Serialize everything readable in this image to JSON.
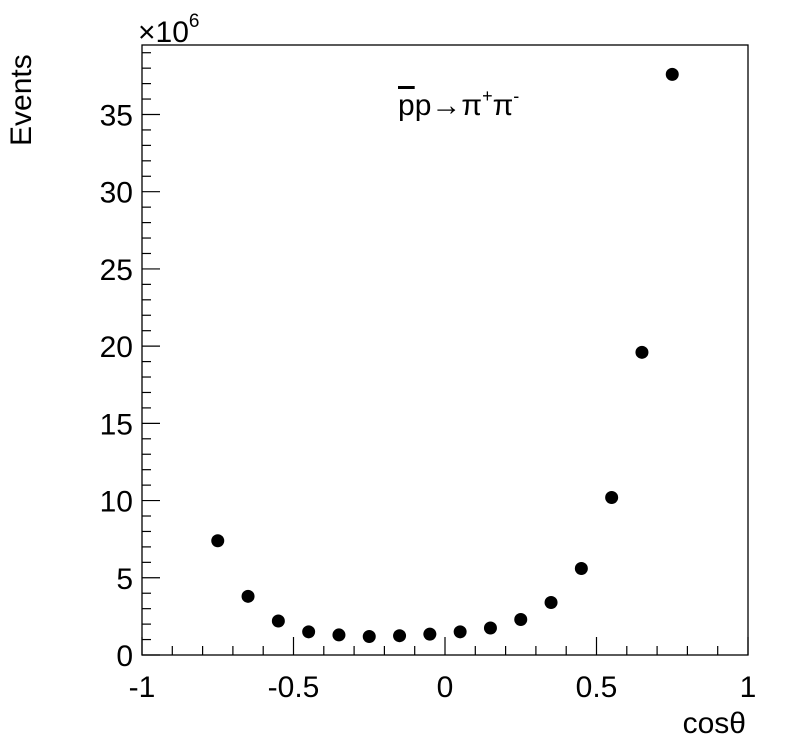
{
  "chart_data": {
    "type": "scatter",
    "title": "",
    "xlabel": "cosθ",
    "ylabel": "Events",
    "y_multiplier": "×10",
    "y_exponent": "6",
    "annotation": {
      "overline": "p",
      "main": "p→π",
      "sup1": "+",
      "mid": "π",
      "sup2": "-"
    },
    "xlim": [
      -1,
      1
    ],
    "ylim": [
      0,
      39.5
    ],
    "x_ticks": [
      {
        "value": -1,
        "label": "-1"
      },
      {
        "value": -0.5,
        "label": "-0.5"
      },
      {
        "value": 0,
        "label": "0"
      },
      {
        "value": 0.5,
        "label": "0.5"
      },
      {
        "value": 1,
        "label": "1"
      }
    ],
    "y_ticks": [
      {
        "value": 0,
        "label": "0"
      },
      {
        "value": 5,
        "label": "5"
      },
      {
        "value": 10,
        "label": "10"
      },
      {
        "value": 15,
        "label": "15"
      },
      {
        "value": 20,
        "label": "20"
      },
      {
        "value": 25,
        "label": "25"
      },
      {
        "value": 30,
        "label": "30"
      },
      {
        "value": 35,
        "label": "35"
      }
    ],
    "grid": false,
    "series": [
      {
        "x": [
          -0.75,
          -0.65,
          -0.55,
          -0.45,
          -0.35,
          -0.25,
          -0.15,
          -0.05,
          0.05,
          0.15,
          0.25,
          0.35,
          0.45,
          0.55,
          0.65,
          0.75
        ],
        "values": [
          7.4,
          3.8,
          2.2,
          1.5,
          1.3,
          1.2,
          1.25,
          1.35,
          1.5,
          1.75,
          2.3,
          3.4,
          5.6,
          10.2,
          19.6,
          37.6
        ]
      }
    ]
  }
}
